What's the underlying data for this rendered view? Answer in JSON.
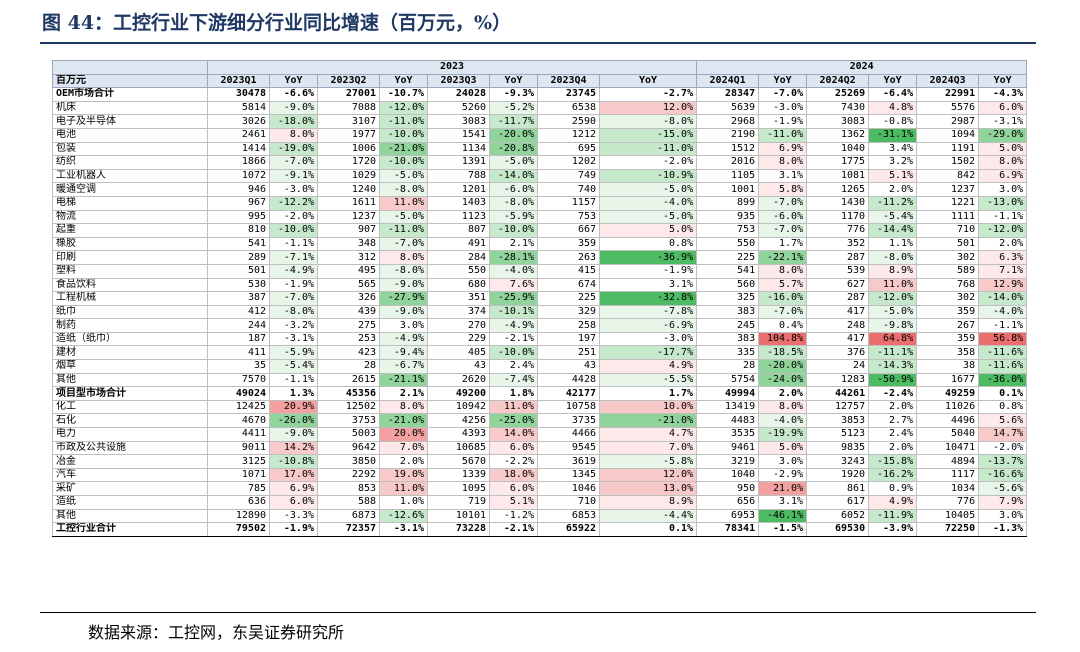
{
  "title": "图 44：工控行业下游细分行业同比增速（百万元，%）",
  "source": "数据来源：工控网，东吴证券研究所",
  "colors": {
    "pos": [
      "#fde9e9",
      "#f8c9c9",
      "#f2a0a0",
      "#ec6f6f"
    ],
    "neg": [
      "#e8f5e9",
      "#c6e9cc",
      "#90d39b",
      "#4cbb62"
    ]
  },
  "table": {
    "year_headers": [
      "2023",
      "2024"
    ],
    "first_col_header": "百万元",
    "columns": [
      "2023Q1",
      "YoY",
      "2023Q2",
      "YoY",
      "2023Q3",
      "YoY",
      "2023Q4",
      "YoY",
      "2024Q1",
      "YoY",
      "2024Q2",
      "YoY",
      "2024Q3",
      "YoY"
    ],
    "rows": [
      {
        "name": "OEM市场合计",
        "bold": true,
        "cells": [
          "30478",
          "-6.6%",
          "27001",
          "-10.7%",
          "24028",
          "-9.3%",
          "23745",
          "-2.7%",
          "28347",
          "-7.0%",
          "25269",
          "-6.4%",
          "22991",
          "-4.3%"
        ]
      },
      {
        "name": "机床",
        "cells": [
          "5814",
          "-9.0%",
          "7088",
          "-12.0%",
          "5260",
          "-5.2%",
          "6538",
          "12.0%",
          "5639",
          "-3.0%",
          "7430",
          "4.8%",
          "5576",
          "6.0%"
        ]
      },
      {
        "name": "电子及半导体",
        "cells": [
          "3026",
          "-18.0%",
          "3107",
          "-11.0%",
          "3083",
          "-11.7%",
          "2590",
          "-8.0%",
          "2968",
          "-1.9%",
          "3083",
          "-0.8%",
          "2987",
          "-3.1%"
        ]
      },
      {
        "name": "电池",
        "cells": [
          "2461",
          "8.0%",
          "1977",
          "-10.0%",
          "1541",
          "-20.0%",
          "1212",
          "-15.0%",
          "2190",
          "-11.0%",
          "1362",
          "-31.1%",
          "1094",
          "-29.0%"
        ]
      },
      {
        "name": "包装",
        "cells": [
          "1414",
          "-19.0%",
          "1006",
          "-21.0%",
          "1134",
          "-20.8%",
          "695",
          "-11.0%",
          "1512",
          "6.9%",
          "1040",
          "3.4%",
          "1191",
          "5.0%"
        ]
      },
      {
        "name": "纺织",
        "cells": [
          "1866",
          "-7.0%",
          "1720",
          "-10.0%",
          "1391",
          "-5.0%",
          "1202",
          "-2.0%",
          "2016",
          "8.0%",
          "1775",
          "3.2%",
          "1502",
          "8.0%"
        ]
      },
      {
        "name": "工业机器人",
        "cells": [
          "1072",
          "-9.1%",
          "1029",
          "-5.0%",
          "788",
          "-14.0%",
          "749",
          "-10.9%",
          "1105",
          "3.1%",
          "1081",
          "5.1%",
          "842",
          "6.9%"
        ]
      },
      {
        "name": "暖通空调",
        "cells": [
          "946",
          "-3.0%",
          "1240",
          "-8.0%",
          "1201",
          "-6.0%",
          "740",
          "-5.0%",
          "1001",
          "5.8%",
          "1265",
          "2.0%",
          "1237",
          "3.0%"
        ]
      },
      {
        "name": "电梯",
        "cells": [
          "967",
          "-12.2%",
          "1611",
          "11.0%",
          "1403",
          "-8.0%",
          "1157",
          "-4.0%",
          "899",
          "-7.0%",
          "1430",
          "-11.2%",
          "1221",
          "-13.0%"
        ]
      },
      {
        "name": "物流",
        "cells": [
          "995",
          "-2.0%",
          "1237",
          "-5.0%",
          "1123",
          "-5.9%",
          "753",
          "-5.0%",
          "935",
          "-6.0%",
          "1170",
          "-5.4%",
          "1111",
          "-1.1%"
        ]
      },
      {
        "name": "起重",
        "cells": [
          "810",
          "-10.0%",
          "907",
          "-11.0%",
          "807",
          "-10.0%",
          "667",
          "5.0%",
          "753",
          "-7.0%",
          "776",
          "-14.4%",
          "710",
          "-12.0%"
        ]
      },
      {
        "name": "橡胶",
        "cells": [
          "541",
          "-1.1%",
          "348",
          "-7.0%",
          "491",
          "2.1%",
          "359",
          "0.8%",
          "550",
          "1.7%",
          "352",
          "1.1%",
          "501",
          "2.0%"
        ]
      },
      {
        "name": "印刷",
        "cells": [
          "289",
          "-7.1%",
          "312",
          "8.0%",
          "284",
          "-28.1%",
          "263",
          "-36.9%",
          "225",
          "-22.1%",
          "287",
          "-8.0%",
          "302",
          "6.3%"
        ]
      },
      {
        "name": "塑料",
        "cells": [
          "501",
          "-4.9%",
          "495",
          "-8.0%",
          "550",
          "-4.0%",
          "415",
          "-1.9%",
          "541",
          "8.0%",
          "539",
          "8.9%",
          "589",
          "7.1%"
        ]
      },
      {
        "name": "食品饮料",
        "cells": [
          "530",
          "-1.9%",
          "565",
          "-9.0%",
          "680",
          "7.6%",
          "674",
          "3.1%",
          "560",
          "5.7%",
          "627",
          "11.0%",
          "768",
          "12.9%"
        ]
      },
      {
        "name": "工程机械",
        "cells": [
          "387",
          "-7.0%",
          "326",
          "-27.9%",
          "351",
          "-25.9%",
          "225",
          "-32.8%",
          "325",
          "-16.0%",
          "287",
          "-12.0%",
          "302",
          "-14.0%"
        ]
      },
      {
        "name": "纸巾",
        "cells": [
          "412",
          "-8.0%",
          "439",
          "-9.0%",
          "374",
          "-10.1%",
          "329",
          "-7.8%",
          "383",
          "-7.0%",
          "417",
          "-5.0%",
          "359",
          "-4.0%"
        ]
      },
      {
        "name": "制药",
        "cells": [
          "244",
          "-3.2%",
          "275",
          "3.0%",
          "270",
          "-4.9%",
          "258",
          "-6.9%",
          "245",
          "0.4%",
          "248",
          "-9.8%",
          "267",
          "-1.1%"
        ]
      },
      {
        "name": "造纸（纸巾）",
        "cells": [
          "187",
          "-3.1%",
          "253",
          "-4.9%",
          "229",
          "-2.1%",
          "197",
          "-3.0%",
          "383",
          "104.8%",
          "417",
          "64.8%",
          "359",
          "56.8%"
        ]
      },
      {
        "name": "建材",
        "cells": [
          "411",
          "-5.9%",
          "423",
          "-9.4%",
          "405",
          "-10.0%",
          "251",
          "-17.7%",
          "335",
          "-18.5%",
          "376",
          "-11.1%",
          "358",
          "-11.6%"
        ]
      },
      {
        "name": "烟草",
        "cells": [
          "35",
          "-5.4%",
          "28",
          "-6.7%",
          "43",
          "2.4%",
          "43",
          "4.9%",
          "28",
          "-20.0%",
          "24",
          "-14.3%",
          "38",
          "-11.6%"
        ]
      },
      {
        "name": "其他",
        "cells": [
          "7570",
          "-1.1%",
          "2615",
          "-21.1%",
          "2620",
          "-7.4%",
          "4428",
          "-5.5%",
          "5754",
          "-24.0%",
          "1283",
          "-50.9%",
          "1677",
          "-36.0%"
        ]
      },
      {
        "name": "项目型市场合计",
        "bold": true,
        "thick": true,
        "cells": [
          "49024",
          "1.3%",
          "45356",
          "2.1%",
          "49200",
          "1.8%",
          "42177",
          "1.7%",
          "49994",
          "2.0%",
          "44261",
          "-2.4%",
          "49259",
          "0.1%"
        ]
      },
      {
        "name": "化工",
        "cells": [
          "12425",
          "20.9%",
          "12502",
          "8.0%",
          "10942",
          "11.0%",
          "10758",
          "10.0%",
          "13419",
          "8.0%",
          "12757",
          "2.0%",
          "11026",
          "0.8%"
        ]
      },
      {
        "name": "石化",
        "cells": [
          "4670",
          "-26.0%",
          "3753",
          "-21.0%",
          "4256",
          "-25.0%",
          "3735",
          "-21.0%",
          "4483",
          "-4.0%",
          "3853",
          "2.7%",
          "4496",
          "5.6%"
        ]
      },
      {
        "name": "电力",
        "cells": [
          "4411",
          "-9.0%",
          "5003",
          "20.0%",
          "4393",
          "14.0%",
          "4466",
          "4.7%",
          "3535",
          "-19.9%",
          "5123",
          "2.4%",
          "5040",
          "14.7%"
        ]
      },
      {
        "name": "市政及公共设施",
        "cells": [
          "9011",
          "14.2%",
          "9642",
          "7.0%",
          "10685",
          "6.0%",
          "9545",
          "7.0%",
          "9461",
          "5.0%",
          "9835",
          "2.0%",
          "10471",
          "-2.0%"
        ]
      },
      {
        "name": "冶金",
        "cells": [
          "3125",
          "-10.8%",
          "3850",
          "2.0%",
          "5670",
          "-2.2%",
          "3619",
          "-5.8%",
          "3219",
          "3.0%",
          "3243",
          "-15.8%",
          "4894",
          "-13.7%"
        ]
      },
      {
        "name": "汽车",
        "cells": [
          "1071",
          "17.0%",
          "2292",
          "19.0%",
          "1339",
          "18.0%",
          "1345",
          "12.0%",
          "1040",
          "-2.9%",
          "1920",
          "-16.2%",
          "1117",
          "-16.6%"
        ]
      },
      {
        "name": "采矿",
        "cells": [
          "785",
          "6.9%",
          "853",
          "11.0%",
          "1095",
          "6.0%",
          "1046",
          "13.0%",
          "950",
          "21.0%",
          "861",
          "0.9%",
          "1034",
          "-5.6%"
        ]
      },
      {
        "name": "造纸",
        "cells": [
          "636",
          "6.0%",
          "588",
          "1.0%",
          "719",
          "5.1%",
          "710",
          "8.9%",
          "656",
          "3.1%",
          "617",
          "4.9%",
          "776",
          "7.9%"
        ]
      },
      {
        "name": "其他",
        "cells": [
          "12890",
          "-3.3%",
          "6873",
          "-12.6%",
          "10101",
          "-1.2%",
          "6853",
          "-4.4%",
          "6953",
          "-46.1%",
          "6052",
          "-11.9%",
          "10405",
          "3.0%"
        ]
      },
      {
        "name": "工控行业合计",
        "bold": true,
        "thick": true,
        "last": true,
        "cells": [
          "79502",
          "-1.9%",
          "72357",
          "-3.1%",
          "73228",
          "-2.1%",
          "65922",
          "0.1%",
          "78341",
          "-1.5%",
          "69530",
          "-3.9%",
          "72250",
          "-1.3%"
        ]
      }
    ]
  }
}
